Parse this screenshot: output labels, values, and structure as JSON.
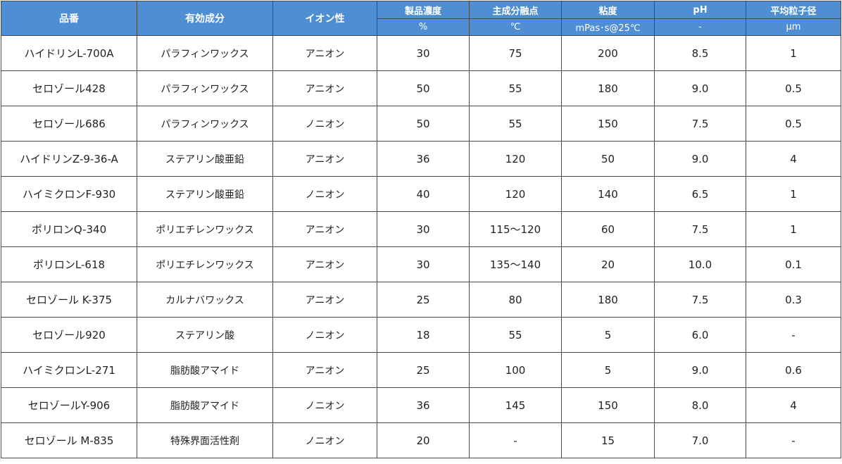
{
  "table": {
    "headers": {
      "hinban": "品番",
      "ingredient": "有効成分",
      "ionic": "イオン性",
      "concentration": "製品濃度",
      "melting_point": "主成分融点",
      "viscosity": "粘度",
      "ph": "pH",
      "particle_size": "平均粒子径"
    },
    "units": {
      "concentration": "%",
      "melting_point": "℃",
      "viscosity": "mPas･s@25℃",
      "ph": "-",
      "particle_size": "μm"
    },
    "rows": [
      {
        "hinban": "ハイドリンL-700A",
        "ingredient": "パラフィンワックス",
        "ionic": "アニオン",
        "concentration": "30",
        "melting_point": "75",
        "viscosity": "200",
        "ph": "8.5",
        "particle_size": "1"
      },
      {
        "hinban": "セロゾール428",
        "ingredient": "パラフィンワックス",
        "ionic": "アニオン",
        "concentration": "50",
        "melting_point": "55",
        "viscosity": "180",
        "ph": "9.0",
        "particle_size": "0.5"
      },
      {
        "hinban": "セロゾール686",
        "ingredient": "パラフィンワックス",
        "ionic": "ノニオン",
        "concentration": "50",
        "melting_point": "55",
        "viscosity": "150",
        "ph": "7.5",
        "particle_size": "0.5"
      },
      {
        "hinban": "ハイドリンZ-9-36-A",
        "ingredient": "ステアリン酸亜鉛",
        "ionic": "アニオン",
        "concentration": "36",
        "melting_point": "120",
        "viscosity": "50",
        "ph": "9.0",
        "particle_size": "4"
      },
      {
        "hinban": "ハイミクロンF-930",
        "ingredient": "ステアリン酸亜鉛",
        "ionic": "ノニオン",
        "concentration": "40",
        "melting_point": "120",
        "viscosity": "140",
        "ph": "6.5",
        "particle_size": "1"
      },
      {
        "hinban": "ポリロンQ-340",
        "ingredient": "ポリエチレンワックス",
        "ionic": "アニオン",
        "concentration": "30",
        "melting_point": "115～120",
        "viscosity": "60",
        "ph": "7.5",
        "particle_size": "1"
      },
      {
        "hinban": "ポリロンL-618",
        "ingredient": "ポリエチレンワックス",
        "ionic": "アニオン",
        "concentration": "30",
        "melting_point": "135～140",
        "viscosity": "20",
        "ph": "10.0",
        "particle_size": "0.1"
      },
      {
        "hinban": "セロゾール K-375",
        "ingredient": "カルナバワックス",
        "ionic": "アニオン",
        "concentration": "25",
        "melting_point": "80",
        "viscosity": "180",
        "ph": "7.5",
        "particle_size": "0.3"
      },
      {
        "hinban": "セロゾール920",
        "ingredient": "ステアリン酸",
        "ionic": "ノニオン",
        "concentration": "18",
        "melting_point": "55",
        "viscosity": "5",
        "ph": "6.0",
        "particle_size": "-"
      },
      {
        "hinban": "ハイミクロンL-271",
        "ingredient": "脂肪酸アマイド",
        "ionic": "アニオン",
        "concentration": "25",
        "melting_point": "100",
        "viscosity": "5",
        "ph": "9.0",
        "particle_size": "0.6"
      },
      {
        "hinban": "セロゾールY-906",
        "ingredient": "脂肪酸アマイド",
        "ionic": "ノニオン",
        "concentration": "36",
        "melting_point": "145",
        "viscosity": "150",
        "ph": "8.0",
        "particle_size": "4"
      },
      {
        "hinban": "セロゾール M-835",
        "ingredient": "特殊界面活性剤",
        "ionic": "ノニオン",
        "concentration": "20",
        "melting_point": "-",
        "viscosity": "15",
        "ph": "7.0",
        "particle_size": "-"
      }
    ]
  }
}
